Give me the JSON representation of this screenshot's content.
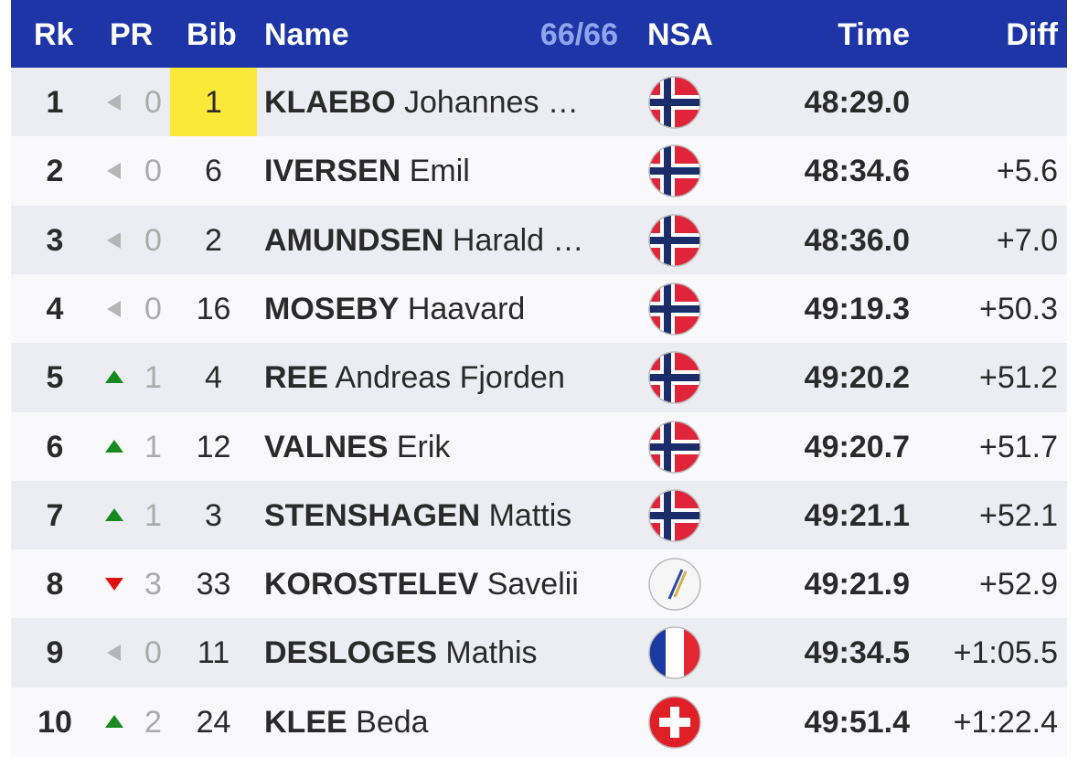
{
  "header": {
    "rank": "Rk",
    "pr": "PR",
    "bib": "Bib",
    "name": "Name",
    "count": "66/66",
    "nsa": "NSA",
    "time": "Time",
    "diff": "Diff"
  },
  "rows": [
    {
      "rank": "1",
      "pr": "0",
      "bib": "1",
      "surname": "KLAEBO",
      "given": "Johannes …",
      "time": "48:29.0",
      "diff": null
    },
    {
      "rank": "2",
      "pr": "0",
      "bib": "6",
      "surname": "IVERSEN",
      "given": "Emil",
      "time": "48:34.6",
      "diff": "+5.6"
    },
    {
      "rank": "3",
      "pr": "0",
      "bib": "2",
      "surname": "AMUNDSEN",
      "given": "Harald …",
      "time": "48:36.0",
      "diff": "+7.0"
    },
    {
      "rank": "4",
      "pr": "0",
      "bib": "16",
      "surname": "MOSEBY",
      "given": "Haavard",
      "time": "49:19.3",
      "diff": "+50.3"
    },
    {
      "rank": "5",
      "pr": "1",
      "bib": "4",
      "surname": "REE",
      "given": "Andreas Fjorden",
      "time": "49:20.2",
      "diff": "+51.2"
    },
    {
      "rank": "6",
      "pr": "1",
      "bib": "12",
      "surname": "VALNES",
      "given": "Erik",
      "time": "49:20.7",
      "diff": "+51.7"
    },
    {
      "rank": "7",
      "pr": "1",
      "bib": "3",
      "surname": "STENSHAGEN",
      "given": "Mattis",
      "time": "49:21.1",
      "diff": "+52.1"
    },
    {
      "rank": "8",
      "pr": "3",
      "bib": "33",
      "surname": "KOROSTELEV",
      "given": "Savelii",
      "time": "49:21.9",
      "diff": "+52.9"
    },
    {
      "rank": "9",
      "pr": "0",
      "bib": "11",
      "surname": "DESLOGES",
      "given": "Mathis",
      "time": "49:34.5",
      "diff": "+1:05.5"
    },
    {
      "rank": "10",
      "pr": "2",
      "bib": "24",
      "surname": "KLEE",
      "given": "Beda",
      "time": "49:51.4",
      "diff": "+1:22.4"
    }
  ]
}
